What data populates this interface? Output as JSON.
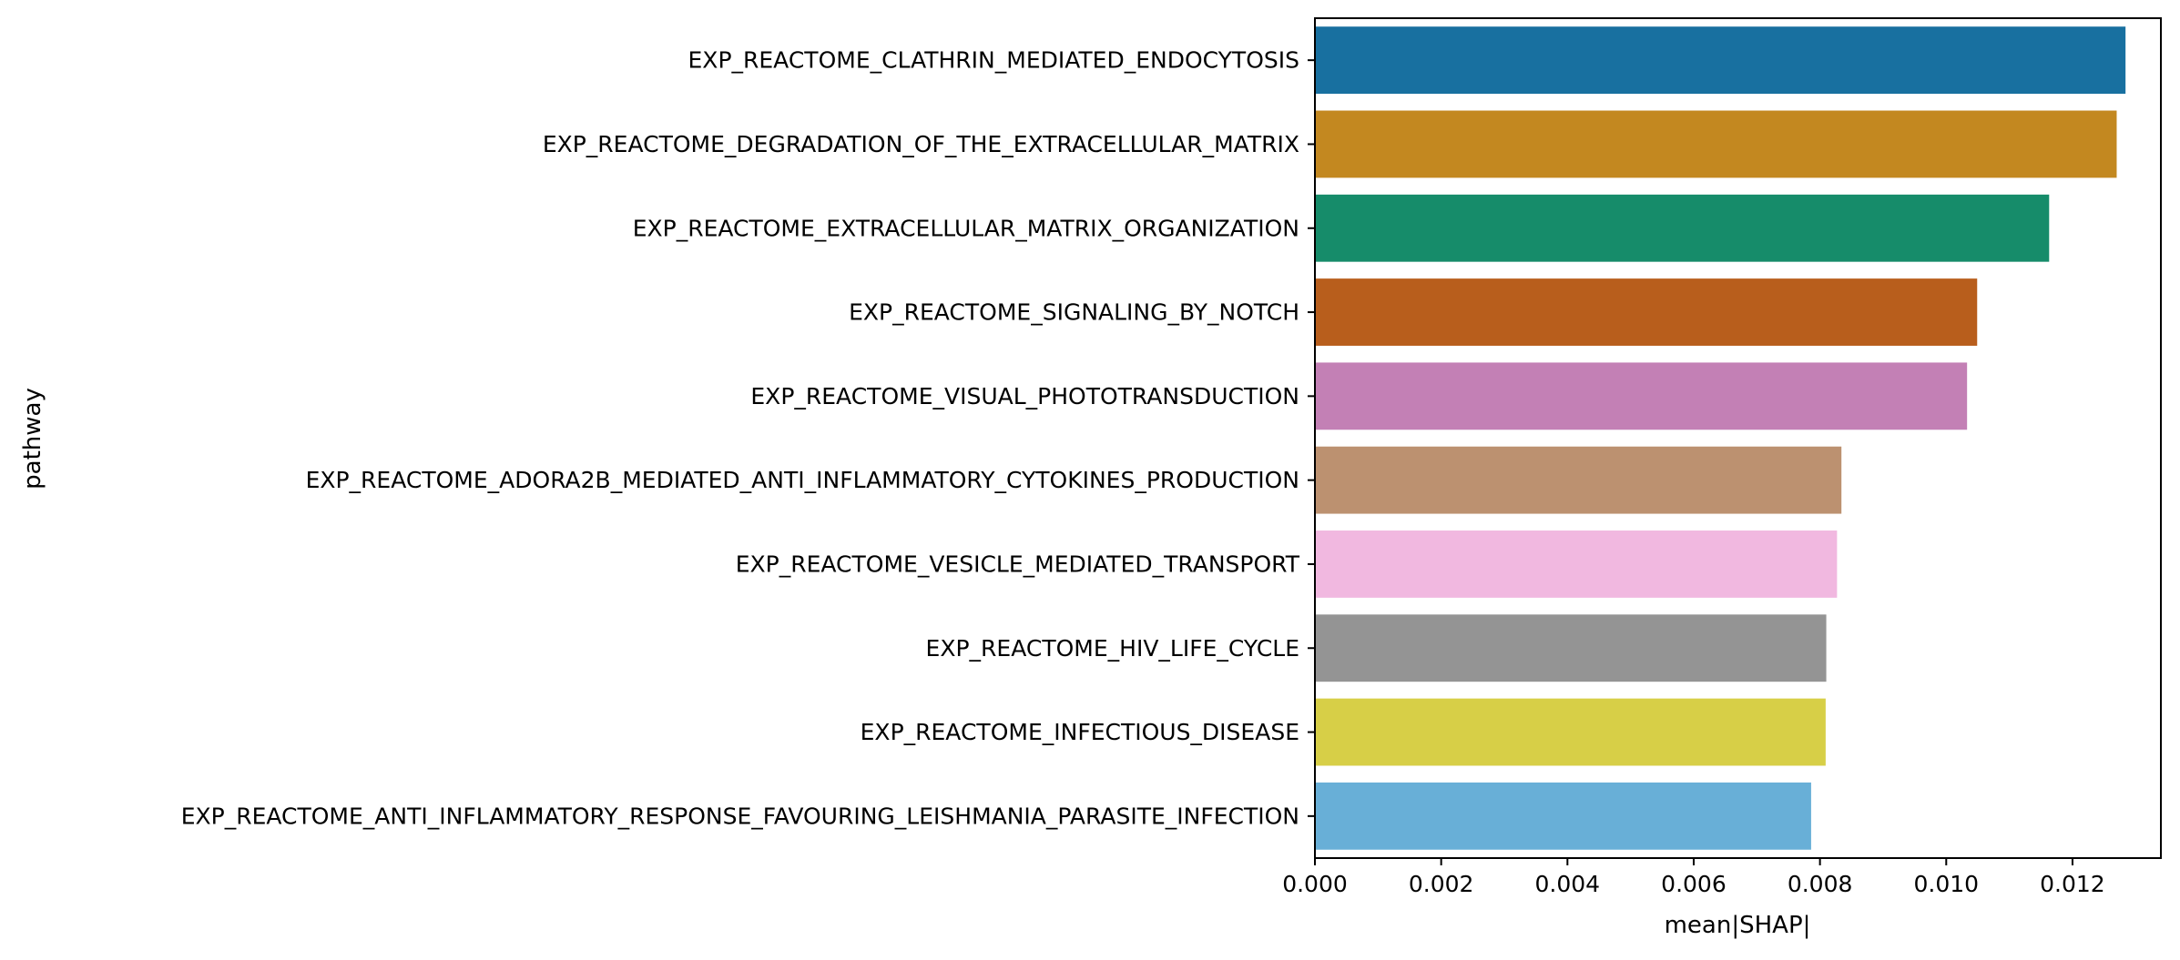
{
  "chart_data": {
    "type": "bar",
    "orientation": "horizontal",
    "title": "",
    "xlabel": "mean|SHAP|",
    "ylabel": "pathway",
    "xlim": [
      0,
      0.0134
    ],
    "xticks": [
      0,
      0.002,
      0.004,
      0.006,
      0.008,
      0.01,
      0.012
    ],
    "xtick_labels": [
      "0.000",
      "0.002",
      "0.004",
      "0.006",
      "0.008",
      "0.010",
      "0.012"
    ],
    "grid": false,
    "legend": "none",
    "categories": [
      "EXP_REACTOME_CLATHRIN_MEDIATED_ENDOCYTOSIS",
      "EXP_REACTOME_DEGRADATION_OF_THE_EXTRACELLULAR_MATRIX",
      "EXP_REACTOME_EXTRACELLULAR_MATRIX_ORGANIZATION",
      "EXP_REACTOME_SIGNALING_BY_NOTCH",
      "EXP_REACTOME_VISUAL_PHOTOTRANSDUCTION",
      "EXP_REACTOME_ADORA2B_MEDIATED_ANTI_INFLAMMATORY_CYTOKINES_PRODUCTION",
      "EXP_REACTOME_VESICLE_MEDIATED_TRANSPORT",
      "EXP_REACTOME_HIV_LIFE_CYCLE",
      "EXP_REACTOME_INFECTIOUS_DISEASE",
      "EXP_REACTOME_ANTI_INFLAMMATORY_RESPONSE_FAVOURING_LEISHMANIA_PARASITE_INFECTION"
    ],
    "values": [
      0.01284,
      0.0127,
      0.01163,
      0.01049,
      0.01033,
      0.00834,
      0.00827,
      0.0081,
      0.00809,
      0.00786
    ],
    "colors": [
      "#1870a0",
      "#c38820",
      "#168c6a",
      "#b85e1c",
      "#c380b5",
      "#bc9170",
      "#f1b8e0",
      "#949494",
      "#d7cf47",
      "#68afd7"
    ]
  }
}
